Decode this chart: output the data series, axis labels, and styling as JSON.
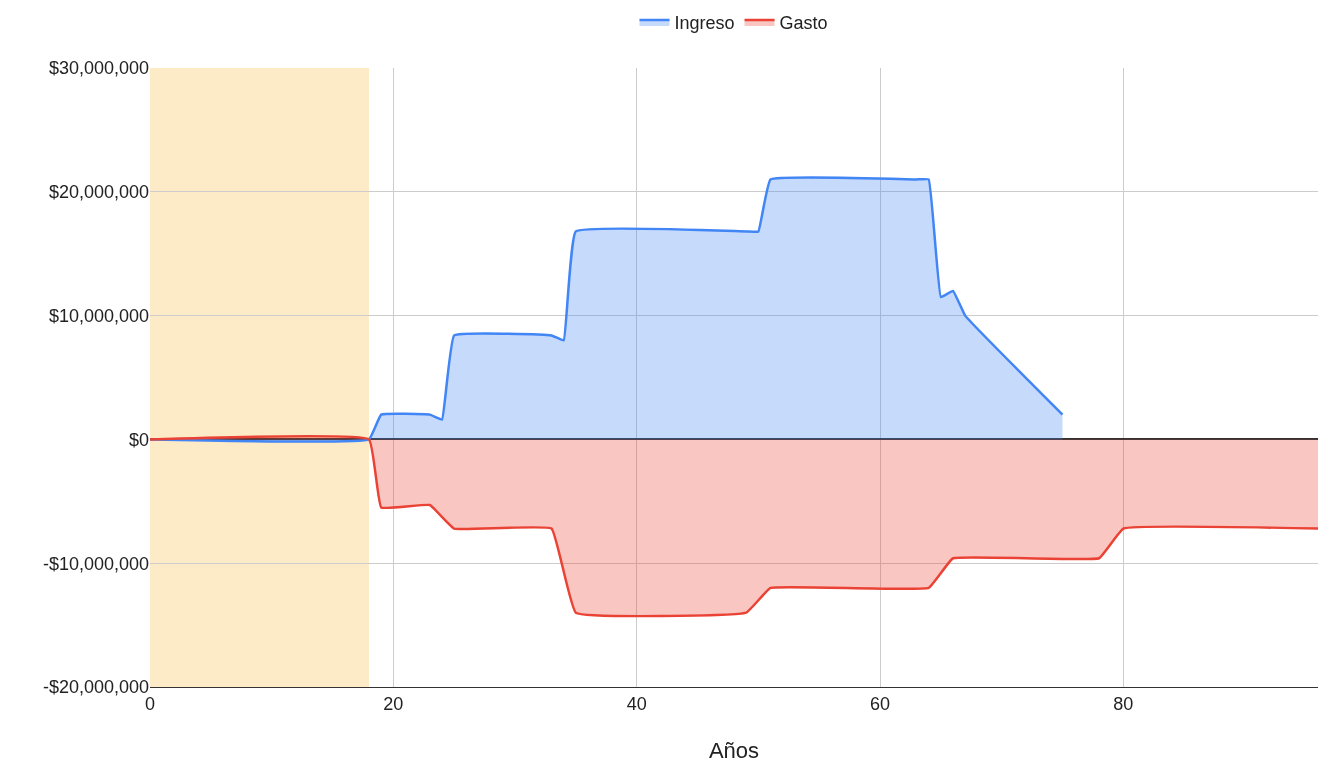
{
  "chart_data": {
    "type": "area",
    "xlabel": "Años",
    "series": [
      {
        "name": "Ingreso",
        "color": "#4285f4",
        "x": [
          0,
          18,
          19,
          23,
          24,
          25,
          33,
          34,
          35,
          49,
          50,
          51,
          63,
          64,
          65,
          66,
          67,
          75
        ],
        "values": [
          0,
          0,
          2000000,
          2000000,
          1600000,
          8400000,
          8400000,
          8000000,
          16800000,
          16800000,
          16800000,
          21000000,
          21000000,
          21000000,
          11500000,
          12000000,
          10000000,
          2000000
        ]
      },
      {
        "name": "Gasto",
        "color": "#ea4335",
        "x": [
          0,
          18,
          19,
          23,
          25,
          33,
          35,
          49,
          51,
          64,
          66,
          78,
          80,
          96
        ],
        "values": [
          0,
          0,
          -5500000,
          -5300000,
          -7200000,
          -7200000,
          -14000000,
          -14000000,
          -12000000,
          -12000000,
          -9600000,
          -9600000,
          -7200000,
          -7200000
        ]
      }
    ],
    "xlim": [
      0,
      96
    ],
    "xticks": [
      0,
      20,
      40,
      60,
      80
    ],
    "ylim": [
      -20000000,
      30000000
    ],
    "yticks": [
      {
        "value": -20000000,
        "label": "-$20,000,000"
      },
      {
        "value": -10000000,
        "label": "-$10,000,000"
      },
      {
        "value": 0,
        "label": "$0"
      },
      {
        "value": 10000000,
        "label": "$10,000,000"
      },
      {
        "value": 20000000,
        "label": "$20,000,000"
      },
      {
        "value": 30000000,
        "label": "$30,000,000"
      }
    ],
    "bands": [
      {
        "axis": "x",
        "from": 0,
        "to": 18,
        "color": "#fdebc8"
      }
    ],
    "grid": true,
    "legend": "top"
  }
}
